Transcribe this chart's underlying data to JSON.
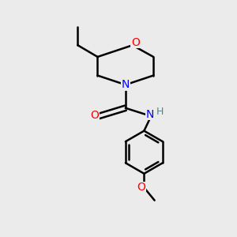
{
  "bg_color": "#ebebeb",
  "atom_colors": {
    "O": "#ff0000",
    "N": "#0000ff",
    "C": "#000000",
    "H": "#4a8a8a"
  },
  "bond_color": "#000000",
  "bond_width": 1.8,
  "figsize": [
    3.0,
    3.0
  ],
  "dpi": 100
}
